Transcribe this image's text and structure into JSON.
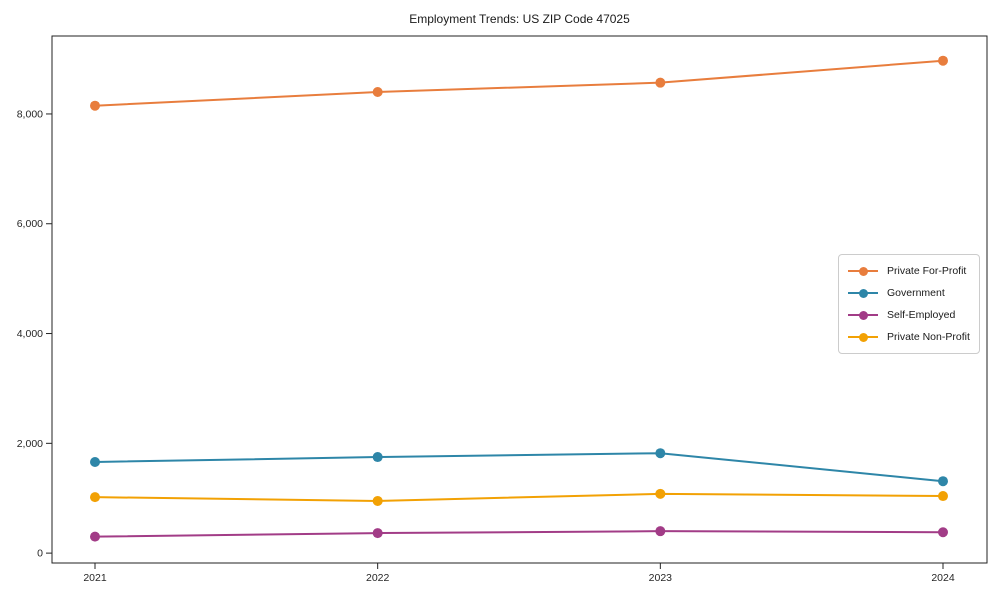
{
  "chart_data": {
    "type": "line",
    "title": "Employment Trends: US ZIP Code 47025",
    "xlabel": "",
    "ylabel": "",
    "categories": [
      "2021",
      "2022",
      "2023",
      "2024"
    ],
    "series": [
      {
        "name": "Private For-Profit",
        "color": "#e87d3d",
        "values": [
          8150,
          8400,
          8570,
          8970
        ]
      },
      {
        "name": "Government",
        "color": "#2e86a8",
        "values": [
          1660,
          1750,
          1820,
          1310
        ]
      },
      {
        "name": "Self-Employed",
        "color": "#a23c87",
        "values": [
          300,
          365,
          400,
          380
        ]
      },
      {
        "name": "Private Non-Profit",
        "color": "#f2a104",
        "values": [
          1020,
          950,
          1080,
          1040
        ]
      }
    ],
    "yticks": {
      "values": [
        0,
        2000,
        4000,
        6000,
        8000
      ],
      "labels": [
        "0",
        "2,000",
        "4,000",
        "6,000",
        "8,000"
      ]
    },
    "ylim": [
      -180,
      9420
    ],
    "grid": false,
    "legend_position": "center-right",
    "axis_color": "#222222",
    "tick_label_color": "#262626",
    "marker_radius": 5,
    "line_width": 2
  }
}
